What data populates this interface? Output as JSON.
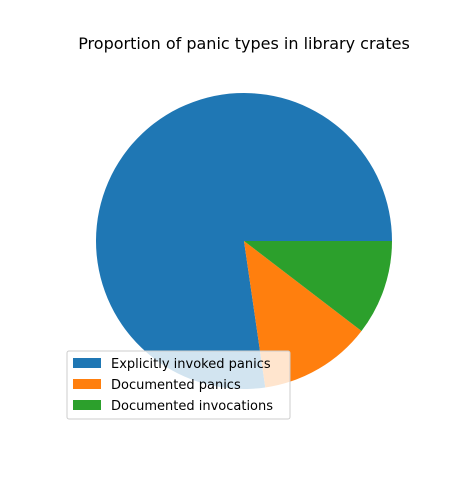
{
  "chart_data": {
    "type": "pie",
    "title": "Proportion of panic types in library crates",
    "slices": [
      {
        "label": "Explicitly invoked panics",
        "value": 77.3,
        "color": "#1f77b4"
      },
      {
        "label": "Documented panics",
        "value": 12.3,
        "color": "#ff7f0e"
      },
      {
        "label": "Documented invocations",
        "value": 10.4,
        "color": "#2ca02c"
      }
    ],
    "start_angle_deg": 0,
    "direction": "counterclockwise",
    "legend_position": "lower-left"
  }
}
